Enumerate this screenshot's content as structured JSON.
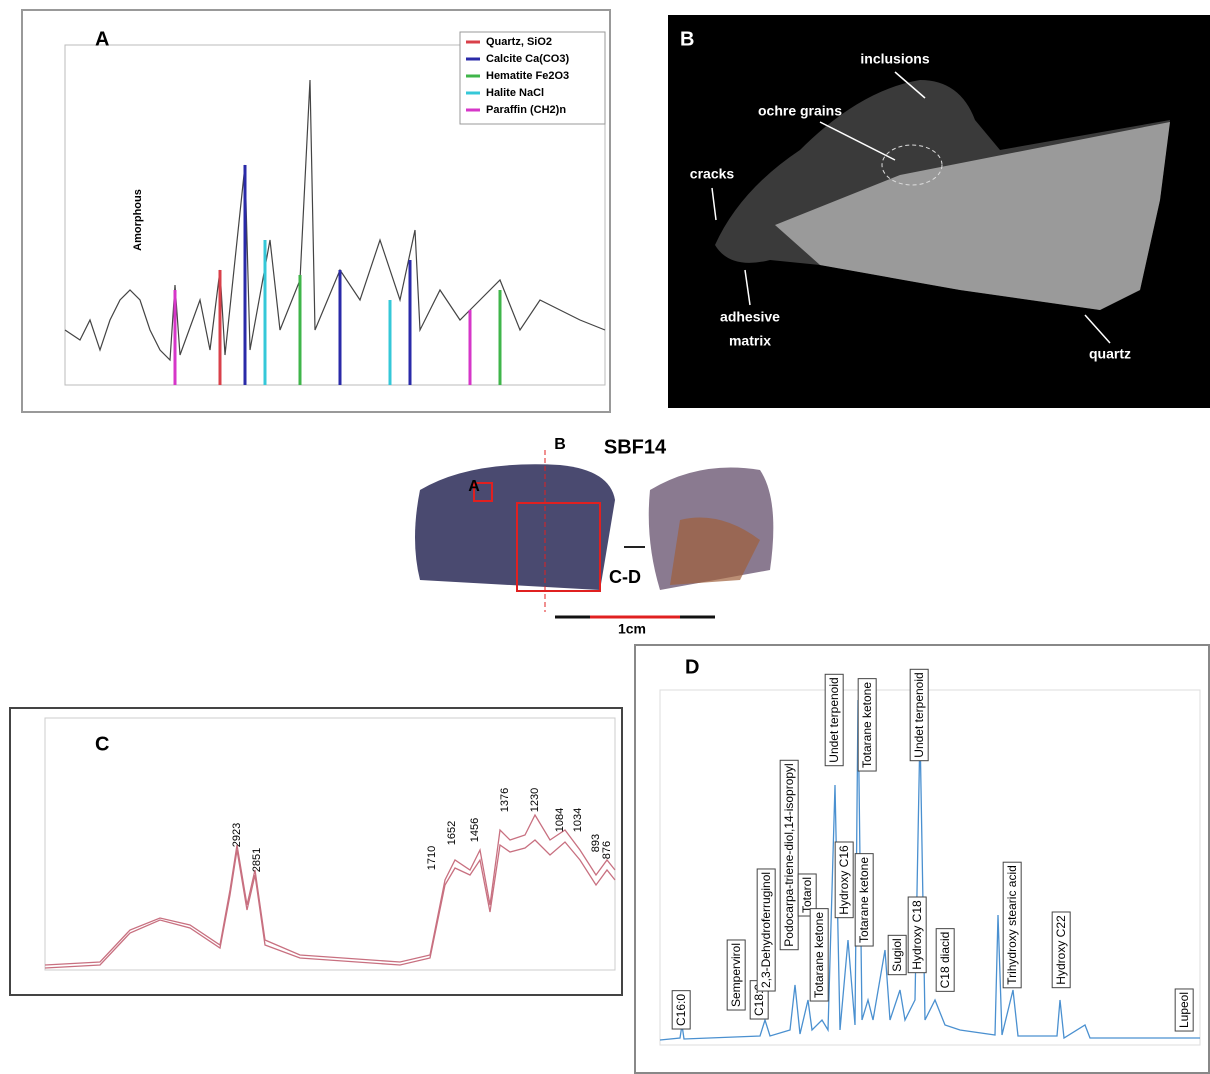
{
  "panel_a": {
    "label": "A",
    "annotation": "Amorphous",
    "legend": [
      {
        "name": "Quartz, SiO2",
        "color": "#d9404a"
      },
      {
        "name": "Calcite Ca(CO3)",
        "color": "#2a2aa8"
      },
      {
        "name": "Hematite Fe2O3",
        "color": "#3fb54a"
      },
      {
        "name": "Halite NaCl",
        "color": "#35c8d8"
      },
      {
        "name": "Paraffin (CH2)n",
        "color": "#d636c8"
      }
    ]
  },
  "panel_b": {
    "label": "B",
    "labels": [
      "inclusions",
      "ochre grains",
      "cracks",
      "adhesive",
      "matrix",
      "quartz"
    ]
  },
  "photo": {
    "label_b": "B",
    "sample": "SBF14",
    "label_a": "A",
    "label_cd": "C-D",
    "scale": "1cm"
  },
  "panel_c": {
    "label": "C",
    "peaks": [
      "2923",
      "2851",
      "1710",
      "1652",
      "1456",
      "1376",
      "1230",
      "1084",
      "1034",
      "893",
      "876"
    ]
  },
  "panel_d": {
    "label": "D",
    "peaks": [
      "C16:0",
      "Sempervirol",
      "C18:0",
      "2,3-Dehydroferruginol",
      "Podocarpa-triene-diol,14-isopropyl",
      "Totarol",
      "Totarane ketone",
      "Undet terpenoid",
      "Hydroxy C16",
      "Totarane ketone",
      "Totarane ketone",
      "Sugiol",
      "Undet terpenoid",
      "Hydroxy C18",
      "C18 diacid",
      "Trihydroxy stearic acid",
      "Hydroxy C22",
      "Lupeol"
    ]
  }
}
